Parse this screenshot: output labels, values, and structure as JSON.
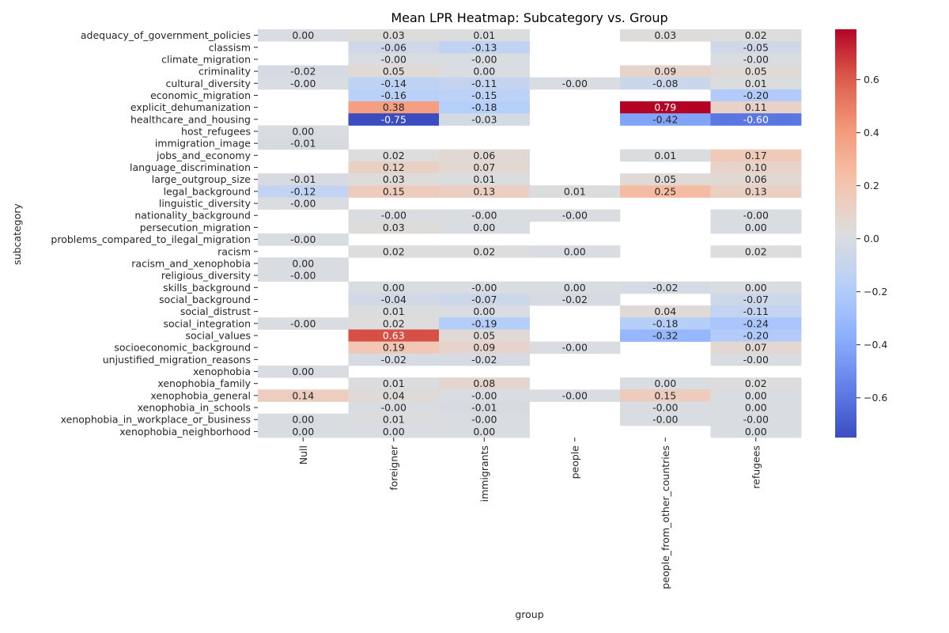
{
  "chart_data": {
    "type": "heatmap",
    "title": "Mean LPR Heatmap: Subcategory vs. Group",
    "xlabel": "group",
    "ylabel": "subcategory",
    "colormap": "coolwarm",
    "vmin": -0.75,
    "vmax": 0.79,
    "colorbar_ticks": [
      "0.6",
      "0.4",
      "0.2",
      "0.0",
      "−0.2",
      "−0.4",
      "−0.6"
    ],
    "columns": [
      "Null",
      "foreigner",
      "immigrants",
      "people",
      "people_from_other_countries",
      "refugees"
    ],
    "rows": [
      {
        "label": "adequacy_of_government_policies",
        "values": [
          0.0,
          0.03,
          0.01,
          null,
          0.03,
          0.02
        ],
        "text": [
          "0.00",
          "0.03",
          "0.01",
          null,
          "0.03",
          "0.02"
        ]
      },
      {
        "label": "classism",
        "values": [
          null,
          -0.06,
          -0.13,
          null,
          null,
          -0.05
        ],
        "text": [
          null,
          "-0.06",
          "-0.13",
          null,
          null,
          "-0.05"
        ]
      },
      {
        "label": "climate_migration",
        "values": [
          null,
          -0.0,
          -0.0,
          null,
          null,
          -0.0
        ],
        "text": [
          null,
          "-0.00",
          "-0.00",
          null,
          null,
          "-0.00"
        ]
      },
      {
        "label": "criminality",
        "values": [
          -0.02,
          0.05,
          0.0,
          null,
          0.09,
          0.05
        ],
        "text": [
          "-0.02",
          "0.05",
          "0.00",
          null,
          "0.09",
          "0.05"
        ]
      },
      {
        "label": "cultural_diversity",
        "values": [
          -0.0,
          -0.14,
          -0.11,
          -0.0,
          -0.08,
          0.01
        ],
        "text": [
          "-0.00",
          "-0.14",
          "-0.11",
          "-0.00",
          "-0.08",
          "0.01"
        ]
      },
      {
        "label": "economic_migration",
        "values": [
          null,
          -0.16,
          -0.15,
          null,
          null,
          -0.2
        ],
        "text": [
          null,
          "-0.16",
          "-0.15",
          null,
          null,
          "-0.20"
        ]
      },
      {
        "label": "explicit_dehumanization",
        "values": [
          null,
          0.38,
          -0.18,
          null,
          0.79,
          0.11
        ],
        "text": [
          null,
          "0.38",
          "-0.18",
          null,
          "0.79",
          "0.11"
        ]
      },
      {
        "label": "healthcare_and_housing",
        "values": [
          null,
          -0.75,
          -0.03,
          null,
          -0.42,
          -0.6
        ],
        "text": [
          null,
          "-0.75",
          "-0.03",
          null,
          "-0.42",
          "-0.60"
        ]
      },
      {
        "label": "host_refugees",
        "values": [
          0.0,
          null,
          null,
          null,
          null,
          null
        ],
        "text": [
          "0.00",
          null,
          null,
          null,
          null,
          null
        ]
      },
      {
        "label": "immigration_image",
        "values": [
          -0.01,
          null,
          null,
          null,
          null,
          null
        ],
        "text": [
          "-0.01",
          null,
          null,
          null,
          null,
          null
        ]
      },
      {
        "label": "jobs_and_economy",
        "values": [
          null,
          0.02,
          0.06,
          null,
          0.01,
          0.17
        ],
        "text": [
          null,
          "0.02",
          "0.06",
          null,
          "0.01",
          "0.17"
        ]
      },
      {
        "label": "language_discrimination",
        "values": [
          null,
          0.12,
          0.07,
          null,
          null,
          0.1
        ],
        "text": [
          null,
          "0.12",
          "0.07",
          null,
          null,
          "0.10"
        ]
      },
      {
        "label": "large_outgroup_size",
        "values": [
          -0.01,
          0.03,
          0.01,
          null,
          0.05,
          0.06
        ],
        "text": [
          "-0.01",
          "0.03",
          "0.01",
          null,
          "0.05",
          "0.06"
        ]
      },
      {
        "label": "legal_background",
        "values": [
          -0.12,
          0.15,
          0.13,
          0.01,
          0.25,
          0.13
        ],
        "text": [
          "-0.12",
          "0.15",
          "0.13",
          "0.01",
          "0.25",
          "0.13"
        ]
      },
      {
        "label": "linguistic_diversity",
        "values": [
          -0.0,
          null,
          null,
          null,
          null,
          null
        ],
        "text": [
          "-0.00",
          null,
          null,
          null,
          null,
          null
        ]
      },
      {
        "label": "nationality_background",
        "values": [
          null,
          -0.0,
          -0.0,
          -0.0,
          null,
          -0.0
        ],
        "text": [
          null,
          "-0.00",
          "-0.00",
          "-0.00",
          null,
          "-0.00"
        ]
      },
      {
        "label": "persecution_migration",
        "values": [
          null,
          0.03,
          0.0,
          null,
          null,
          0.0
        ],
        "text": [
          null,
          "0.03",
          "0.00",
          null,
          null,
          "0.00"
        ]
      },
      {
        "label": "problems_compared_to_ilegal_migration",
        "values": [
          -0.0,
          null,
          null,
          null,
          null,
          null
        ],
        "text": [
          "-0.00",
          null,
          null,
          null,
          null,
          null
        ]
      },
      {
        "label": "racism",
        "values": [
          null,
          0.02,
          0.02,
          0.0,
          null,
          0.02
        ],
        "text": [
          null,
          "0.02",
          "0.02",
          "0.00",
          null,
          "0.02"
        ]
      },
      {
        "label": "racism_and_xenophobia",
        "values": [
          0.0,
          null,
          null,
          null,
          null,
          null
        ],
        "text": [
          "0.00",
          null,
          null,
          null,
          null,
          null
        ]
      },
      {
        "label": "religious_diversity",
        "values": [
          -0.0,
          null,
          null,
          null,
          null,
          null
        ],
        "text": [
          "-0.00",
          null,
          null,
          null,
          null,
          null
        ]
      },
      {
        "label": "skills_background",
        "values": [
          null,
          0.0,
          -0.0,
          0.0,
          -0.02,
          0.0
        ],
        "text": [
          null,
          "0.00",
          "-0.00",
          "0.00",
          "-0.02",
          "0.00"
        ]
      },
      {
        "label": "social_background",
        "values": [
          null,
          -0.04,
          -0.07,
          -0.02,
          null,
          -0.07
        ],
        "text": [
          null,
          "-0.04",
          "-0.07",
          "-0.02",
          null,
          "-0.07"
        ]
      },
      {
        "label": "social_distrust",
        "values": [
          null,
          0.01,
          0.0,
          null,
          0.04,
          -0.11
        ],
        "text": [
          null,
          "0.01",
          "0.00",
          null,
          "0.04",
          "-0.11"
        ]
      },
      {
        "label": "social_integration",
        "values": [
          -0.0,
          0.02,
          -0.19,
          null,
          -0.18,
          -0.24
        ],
        "text": [
          "-0.00",
          "0.02",
          "-0.19",
          null,
          "-0.18",
          "-0.24"
        ]
      },
      {
        "label": "social_values",
        "values": [
          null,
          0.63,
          0.05,
          null,
          -0.32,
          -0.2
        ],
        "text": [
          null,
          "0.63",
          "0.05",
          null,
          "-0.32",
          "-0.20"
        ]
      },
      {
        "label": "socioeconomic_background",
        "values": [
          null,
          0.19,
          0.09,
          -0.0,
          null,
          0.07
        ],
        "text": [
          null,
          "0.19",
          "0.09",
          "-0.00",
          null,
          "0.07"
        ]
      },
      {
        "label": "unjustified_migration_reasons",
        "values": [
          null,
          -0.02,
          -0.02,
          null,
          null,
          -0.0
        ],
        "text": [
          null,
          "-0.02",
          "-0.02",
          null,
          null,
          "-0.00"
        ]
      },
      {
        "label": "xenophobia",
        "values": [
          0.0,
          null,
          null,
          null,
          null,
          null
        ],
        "text": [
          "0.00",
          null,
          null,
          null,
          null,
          null
        ]
      },
      {
        "label": "xenophobia_family",
        "values": [
          null,
          0.01,
          0.08,
          null,
          0.0,
          0.02
        ],
        "text": [
          null,
          "0.01",
          "0.08",
          null,
          "0.00",
          "0.02"
        ]
      },
      {
        "label": "xenophobia_general",
        "values": [
          0.14,
          0.04,
          -0.0,
          -0.0,
          0.15,
          0.0
        ],
        "text": [
          "0.14",
          "0.04",
          "-0.00",
          "-0.00",
          "0.15",
          "0.00"
        ]
      },
      {
        "label": "xenophobia_in_schools",
        "values": [
          null,
          -0.0,
          -0.01,
          null,
          -0.0,
          0.0
        ],
        "text": [
          null,
          "-0.00",
          "-0.01",
          null,
          "-0.00",
          "0.00"
        ]
      },
      {
        "label": "xenophobia_in_workplace_or_business",
        "values": [
          0.0,
          0.01,
          -0.0,
          null,
          -0.0,
          -0.0
        ],
        "text": [
          "0.00",
          "0.01",
          "-0.00",
          null,
          "-0.00",
          "-0.00"
        ]
      },
      {
        "label": "xenophobia_neighborhood",
        "values": [
          0.0,
          0.0,
          0.0,
          null,
          null,
          0.0
        ],
        "text": [
          "0.00",
          "0.00",
          "0.00",
          null,
          null,
          "0.00"
        ]
      }
    ]
  }
}
